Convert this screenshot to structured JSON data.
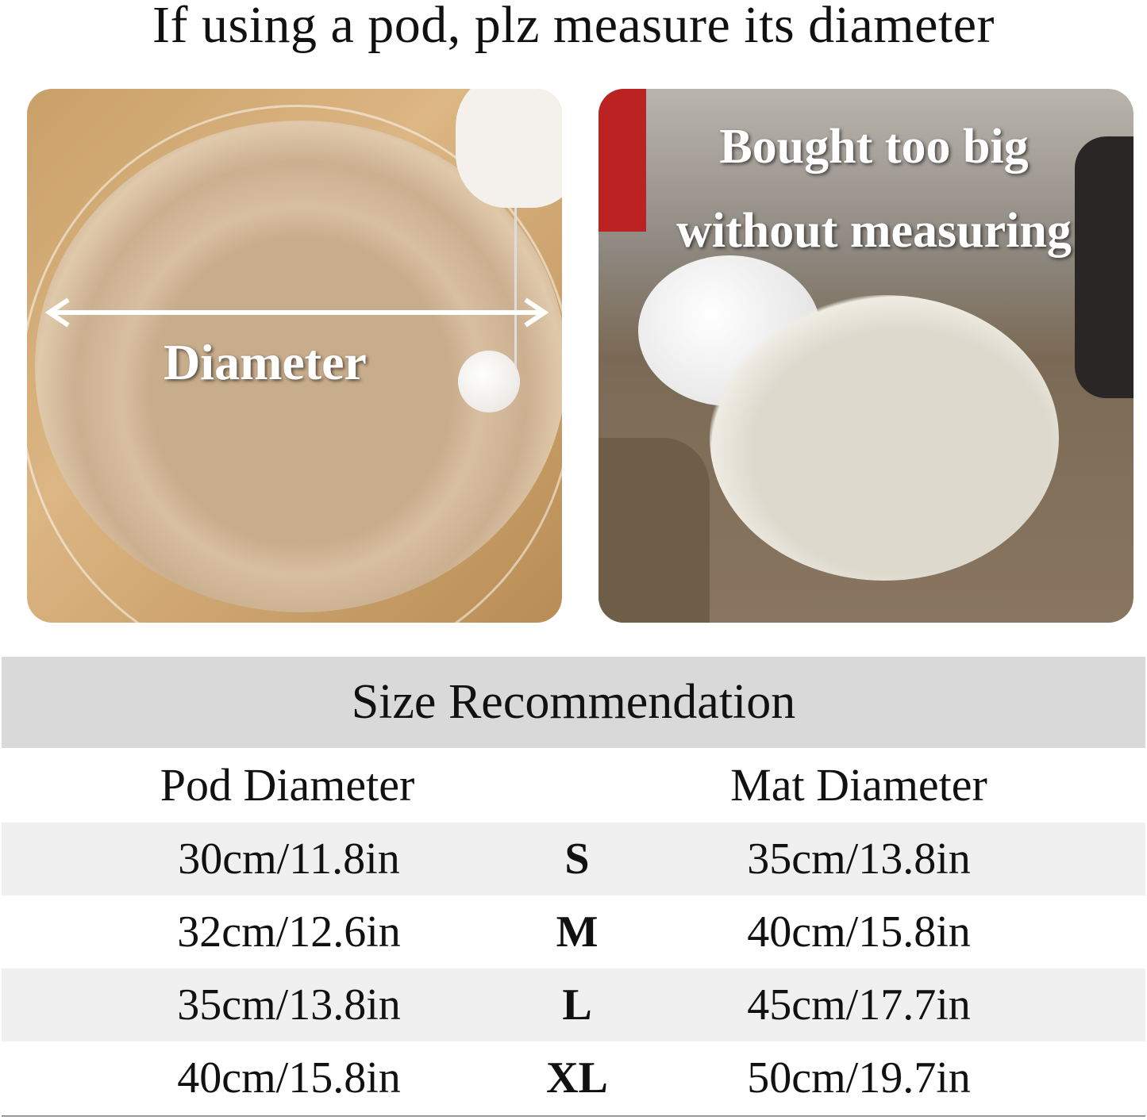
{
  "title": "If using a pod, plz measure its diameter",
  "photo_left": {
    "label": "Diameter"
  },
  "photo_right": {
    "label_line1": "Bought too big",
    "label_line2": "without measuring"
  },
  "table": {
    "title": "Size Recommendation",
    "headers": [
      "Pod Diameter",
      "Mat Diameter"
    ],
    "rows": [
      {
        "pod": "30cm/11.8in",
        "size": "S",
        "mat": "35cm/13.8in"
      },
      {
        "pod": "32cm/12.6in",
        "size": "M",
        "mat": "40cm/15.8in"
      },
      {
        "pod": "35cm/13.8in",
        "size": "L",
        "mat": "45cm/17.7in"
      },
      {
        "pod": "40cm/15.8in",
        "size": "XL",
        "mat": "50cm/19.7in"
      }
    ]
  },
  "colors": {
    "header_bg": "#d9d9d9",
    "stripe_bg": "#f0f0f0"
  }
}
